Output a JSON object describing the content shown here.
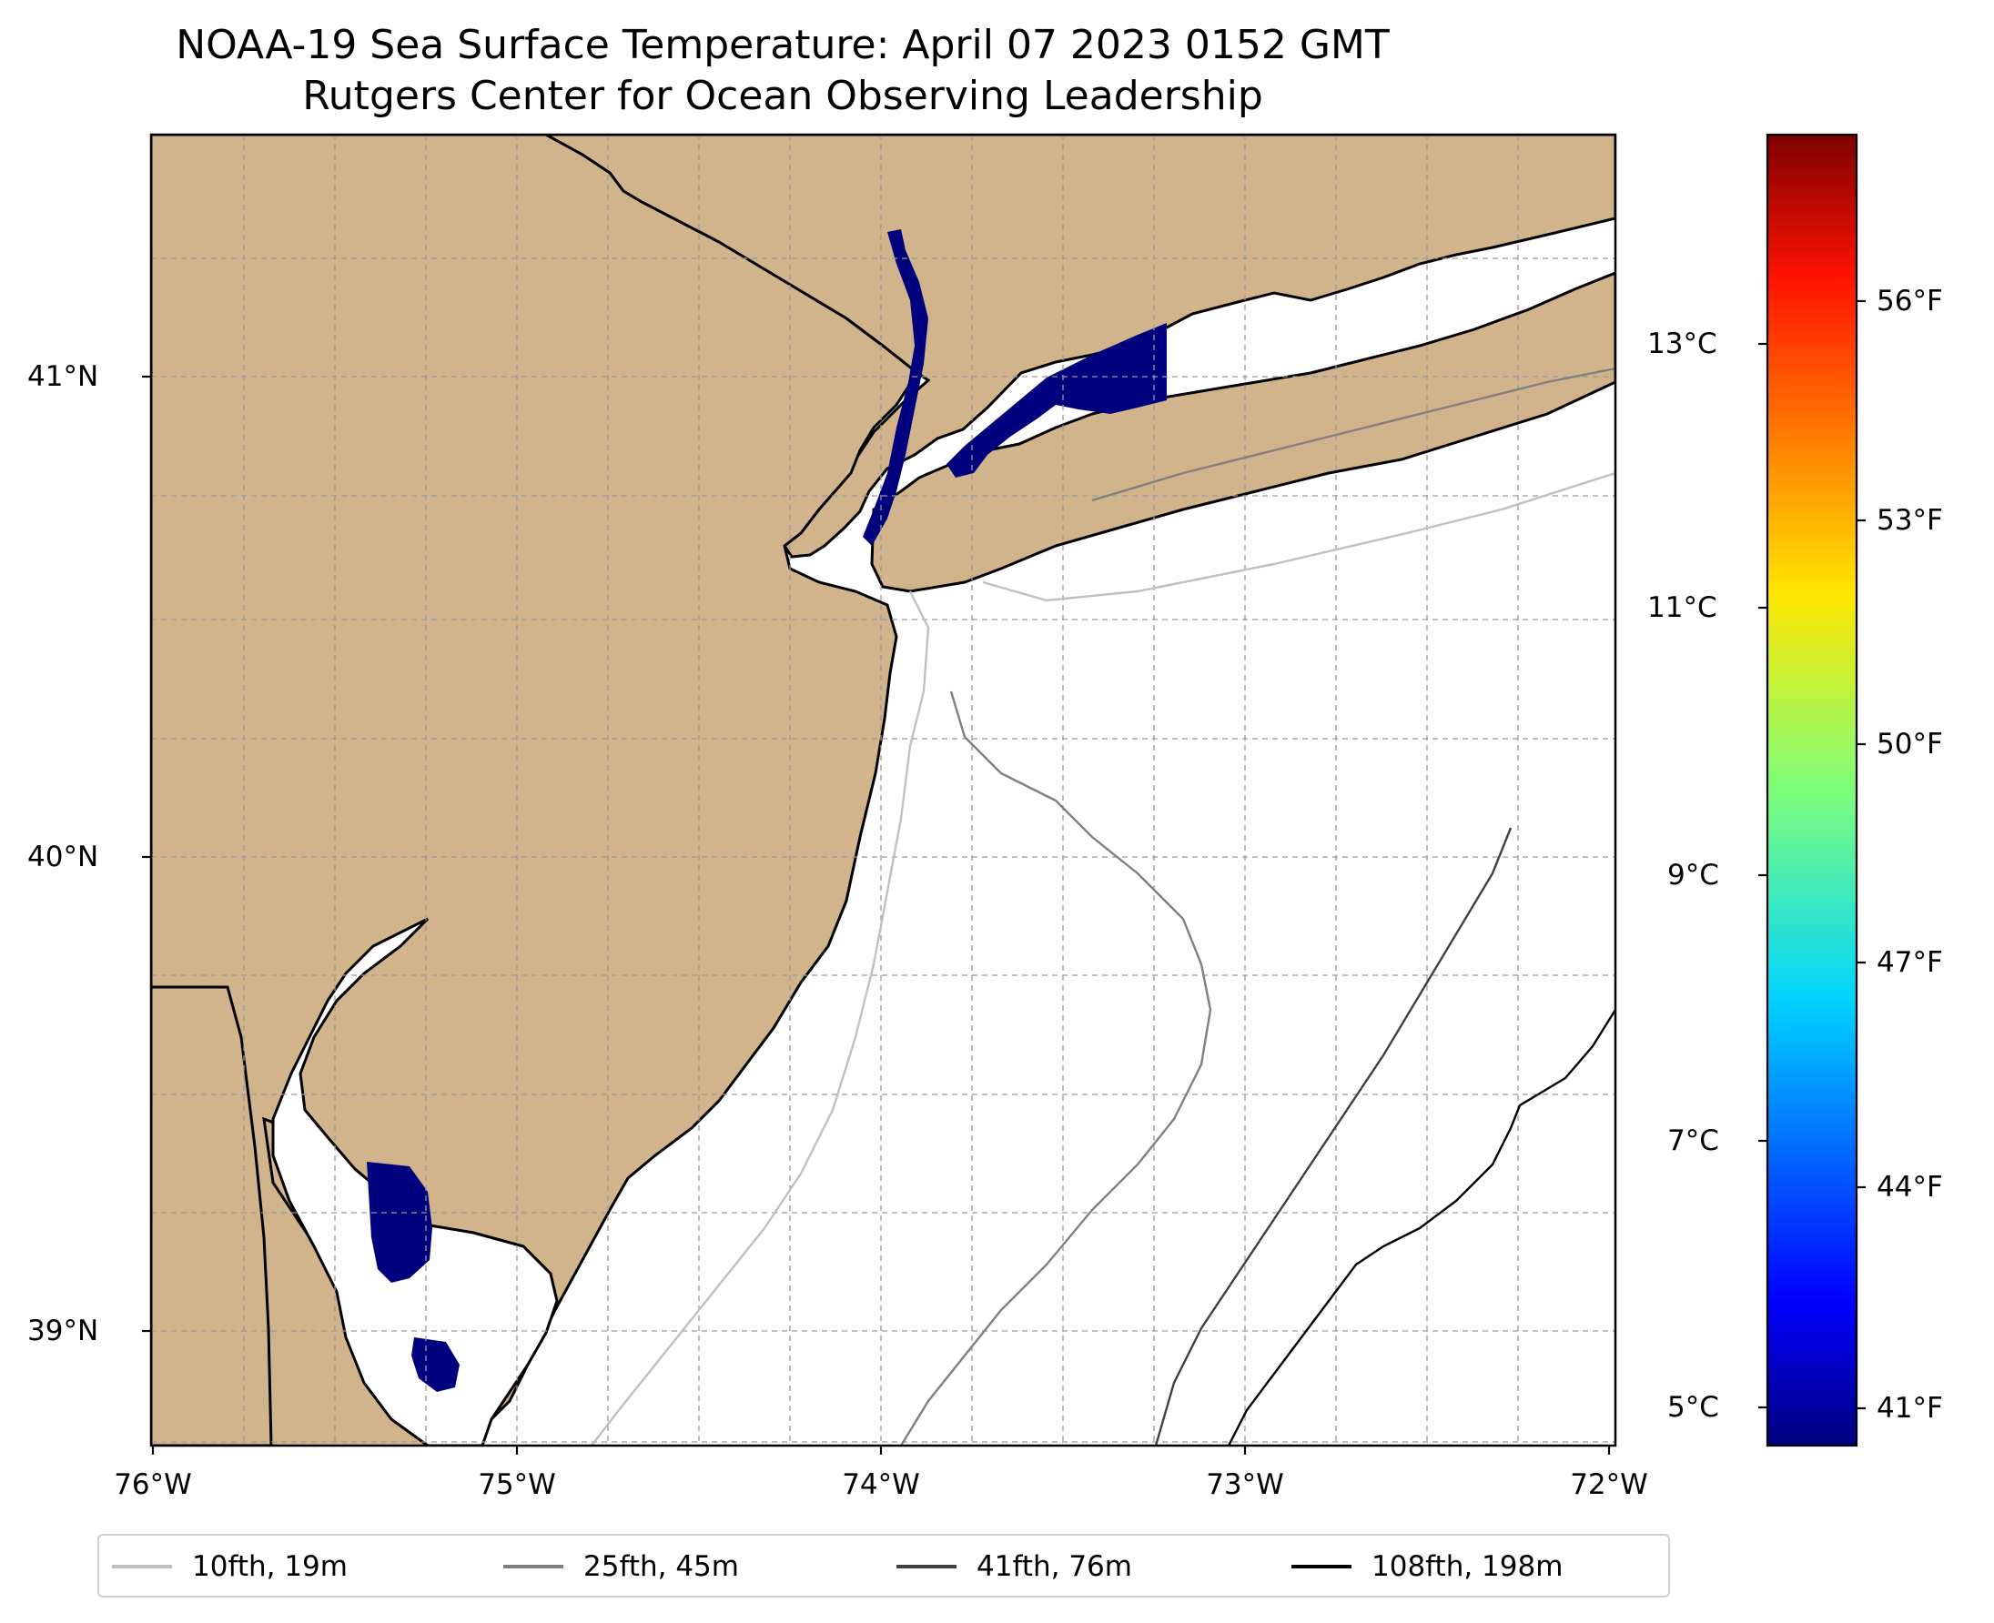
{
  "title": {
    "line1": "NOAA-19 Sea Surface Temperature: April 07 2023 0152 GMT",
    "line2": "Rutgers Center for Ocean Observing Leadership"
  },
  "map": {
    "projection": "PlateCarree",
    "lon_range": [
      -76.0,
      -72.0
    ],
    "lat_range": [
      38.75,
      41.5
    ],
    "gridlines": true,
    "land_color": "#d2b48c",
    "ocean_color": "#ffffff",
    "sst_low_color": "#00007f",
    "lat_tick_labels": [
      {
        "lat": 41,
        "label": "41°N"
      },
      {
        "lat": 40,
        "label": "40°N"
      },
      {
        "lat": 39,
        "label": "39°N"
      }
    ],
    "lon_tick_labels": [
      {
        "lon": -76,
        "label": "76°W"
      },
      {
        "lon": -75,
        "label": "75°W"
      },
      {
        "lon": -74,
        "label": "74°W"
      },
      {
        "lon": -73,
        "label": "73°W"
      },
      {
        "lon": -72,
        "label": "72°W"
      }
    ]
  },
  "colorbar": {
    "colormap": "jet",
    "range_c": [
      4.7,
      14.6
    ],
    "celsius_ticks": [
      {
        "value": 13,
        "label": "13°C"
      },
      {
        "value": 11,
        "label": "11°C"
      },
      {
        "value": 9,
        "label": "9°C"
      },
      {
        "value": 7,
        "label": "7°C"
      },
      {
        "value": 5,
        "label": "5°C"
      }
    ],
    "fahrenheit_ticks": [
      {
        "value": 56,
        "label": "56°F"
      },
      {
        "value": 53,
        "label": "53°F"
      },
      {
        "value": 50,
        "label": "50°F"
      },
      {
        "value": 47,
        "label": "47°F"
      },
      {
        "value": 44,
        "label": "44°F"
      },
      {
        "value": 41,
        "label": "41°F"
      }
    ]
  },
  "legend": {
    "position": "bottom",
    "items": [
      {
        "label": "10fth, 19m",
        "color": "#c0c0c0"
      },
      {
        "label": "25fth, 45m",
        "color": "#808080"
      },
      {
        "label": "41fth, 76m",
        "color": "#404040"
      },
      {
        "label": "108fth, 198m",
        "color": "#000000"
      }
    ]
  }
}
